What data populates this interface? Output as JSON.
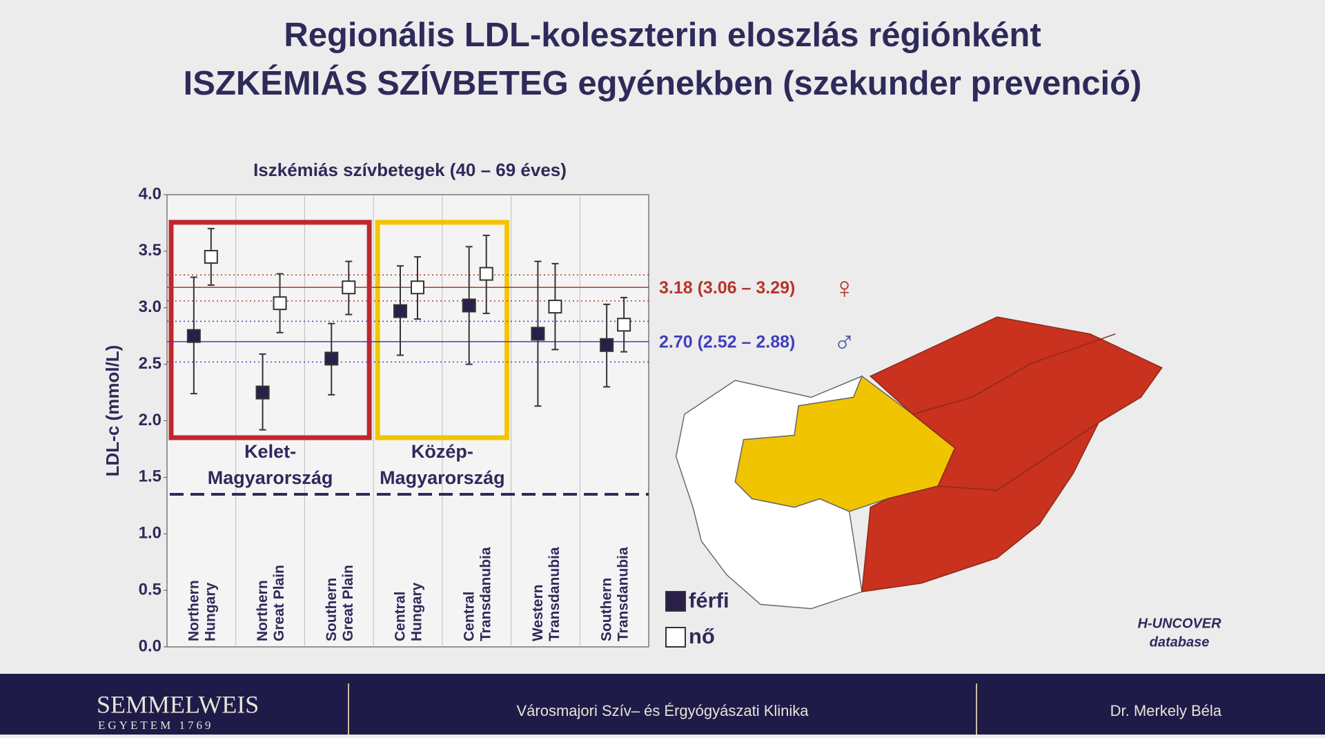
{
  "title": [
    "Regionális LDL-koleszterin eloszlás régiónként",
    "ISZKÉMIÁS SZÍVBETEG egyénekben (szekunder prevenció)"
  ],
  "chart_data": {
    "type": "errorbar",
    "subtitle": "Iszkémiás szívbetegek (40 – 69 éves)",
    "ylabel": "LDL-c (mmol/L)",
    "ylim": [
      0,
      4
    ],
    "yticks": [
      {
        "value": 0,
        "label": "0.0"
      },
      {
        "value": 0.5,
        "label": "0.5"
      },
      {
        "value": 1,
        "label": "1.0"
      },
      {
        "value": 1.5,
        "label": "1.5"
      },
      {
        "value": 2,
        "label": "2.0"
      },
      {
        "value": 2.5,
        "label": "2.5"
      },
      {
        "value": 3,
        "label": "3.0"
      },
      {
        "value": 3.5,
        "label": "3.5"
      },
      {
        "value": 4,
        "label": "4.0"
      }
    ],
    "groups": [
      {
        "label": [
          "Kelet-",
          "Magyarország"
        ],
        "color": "#c0272d",
        "categories": [
          [
            "Northern",
            "Hungary"
          ],
          [
            "Northern",
            "Great Plain"
          ],
          [
            "Southern",
            "Great Plain"
          ]
        ]
      },
      {
        "label": [
          "Közép-",
          "Magyarország"
        ],
        "color": "#f2c500",
        "categories": [
          [
            "Central",
            "Hungary"
          ],
          [
            "Central",
            "Transdanubia"
          ]
        ]
      },
      {
        "label": null,
        "color": null,
        "categories": [
          [
            "Western",
            "Transdanubia"
          ],
          [
            "Southern",
            "Transdanubia"
          ]
        ]
      }
    ],
    "series": [
      {
        "name": "férfi",
        "color": "#2a1f4a",
        "filled": true,
        "values": [
          2.75,
          2.25,
          2.55,
          2.97,
          3.02,
          2.77,
          2.67
        ],
        "low": [
          2.24,
          1.92,
          2.23,
          2.58,
          2.5,
          2.13,
          2.3
        ],
        "high": [
          3.27,
          2.59,
          2.86,
          3.37,
          3.54,
          3.41,
          3.03
        ]
      },
      {
        "name": "nő",
        "color": "#2a1f4a",
        "filled": false,
        "values": [
          3.45,
          3.04,
          3.18,
          3.18,
          3.3,
          3.01,
          2.85
        ],
        "low": [
          3.2,
          2.78,
          2.94,
          2.9,
          2.95,
          2.63,
          2.61
        ],
        "high": [
          3.7,
          3.3,
          3.41,
          3.45,
          3.64,
          3.39,
          3.09
        ]
      }
    ],
    "ref_lines": [
      {
        "value": 3.18,
        "low": 3.06,
        "high": 3.29,
        "label": "3.18 (3.06 – 3.29)",
        "symbol": "♀",
        "color": "#b8332c"
      },
      {
        "value": 2.7,
        "low": 2.52,
        "high": 2.88,
        "label": "2.70 (2.52 – 2.88)",
        "symbol": "♂",
        "color": "#3f3fbf"
      }
    ],
    "threshold": 1.35,
    "source": [
      "H-UNCOVER",
      "database"
    ]
  },
  "footer": {
    "university": "SEMMELWEIS",
    "founded": "EGYETEM 1769",
    "clinic": "Városmajori Szív– és Érgyógyászati Klinika",
    "author": "Dr. Merkely Béla"
  }
}
